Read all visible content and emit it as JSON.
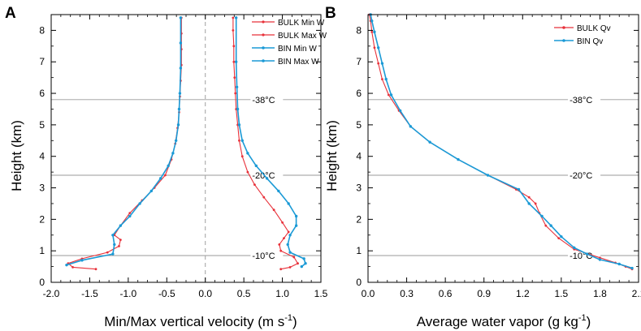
{
  "panels": [
    {
      "id": "A",
      "panel_label": "A",
      "xlabel_main": "Min/Max vertical velocity (m s",
      "xlabel_sup": "-1",
      "xlabel_end": ")",
      "ylabel": "Height (km)"
    },
    {
      "id": "B",
      "panel_label": "B",
      "xlabel_main": "Average water vapor (g kg",
      "xlabel_sup": "-1",
      "xlabel_end": ")",
      "ylabel": "Height (km)"
    }
  ],
  "colors": {
    "bulk": "#e8313a",
    "bin": "#1b9ad6",
    "ref_line": "#9a9a9a",
    "zero_line": "#a0a0a0"
  },
  "chart_data": [
    {
      "type": "line",
      "title": "",
      "xlabel": "Min/Max vertical velocity (m s-1)",
      "ylabel": "Height (km)",
      "xlim": [
        -2.0,
        1.5
      ],
      "ylim": [
        0,
        8.5
      ],
      "xticks": [
        -2.0,
        -1.5,
        -1.0,
        -0.5,
        0.0,
        0.5,
        1.0,
        1.5
      ],
      "xtick_labels": [
        "-2.0",
        "-1.5",
        "-1.0",
        "-0.5",
        "0.0",
        "0.5",
        "1.0",
        "1.5"
      ],
      "yticks": [
        0,
        1,
        2,
        3,
        4,
        5,
        6,
        7,
        8
      ],
      "ytick_labels": [
        "0",
        "1",
        "2",
        "3",
        "4",
        "5",
        "6",
        "7",
        "8"
      ],
      "legend": "top-right",
      "reference_lines": [
        {
          "y": 5.8,
          "label": "-38°C"
        },
        {
          "y": 3.4,
          "label": "-20°C"
        },
        {
          "y": 0.85,
          "label": "-10°C"
        }
      ],
      "zero_line_x": 0.0,
      "series": [
        {
          "name": "BULK Min W",
          "color_key": "bulk",
          "x": [
            -1.42,
            -1.72,
            -1.78,
            -1.6,
            -1.27,
            -1.12,
            -1.1,
            -1.18,
            -1.1,
            -0.98,
            -0.82,
            -0.66,
            -0.52,
            -0.44,
            -0.39,
            -0.36,
            -0.34,
            -0.33,
            -0.32,
            -0.31,
            -0.31,
            -0.31,
            -0.31
          ],
          "y": [
            0.42,
            0.48,
            0.6,
            0.75,
            0.95,
            1.15,
            1.35,
            1.5,
            1.8,
            2.2,
            2.6,
            3.0,
            3.4,
            3.9,
            4.4,
            4.9,
            5.4,
            5.9,
            6.4,
            6.9,
            7.4,
            7.9,
            8.4
          ]
        },
        {
          "name": "BULK Max W",
          "color_key": "bulk",
          "x": [
            0.98,
            1.1,
            1.2,
            1.15,
            0.98,
            0.96,
            1.02,
            1.08,
            1.0,
            0.89,
            0.76,
            0.64,
            0.55,
            0.48,
            0.44,
            0.42,
            0.4,
            0.39,
            0.38,
            0.37,
            0.37,
            0.36,
            0.36
          ],
          "y": [
            0.42,
            0.48,
            0.6,
            0.8,
            1.0,
            1.2,
            1.4,
            1.6,
            1.9,
            2.3,
            2.7,
            3.1,
            3.5,
            4.0,
            4.5,
            5.0,
            5.5,
            6.0,
            6.5,
            7.0,
            7.5,
            8.0,
            8.4
          ]
        },
        {
          "name": "BIN Min W",
          "color_key": "bin",
          "x": [
            -1.8,
            -1.6,
            -1.2,
            -1.18,
            -1.2,
            -1.1,
            -0.98,
            -0.85,
            -0.7,
            -0.58,
            -0.48,
            -0.42,
            -0.38,
            -0.35,
            -0.34,
            -0.33,
            -0.32,
            -0.32,
            -0.32
          ],
          "y": [
            0.55,
            0.7,
            0.9,
            1.2,
            1.5,
            1.8,
            2.1,
            2.5,
            2.9,
            3.3,
            3.7,
            4.1,
            4.5,
            5.0,
            5.5,
            6.0,
            6.8,
            7.6,
            8.4
          ]
        },
        {
          "name": "BIN Max W",
          "color_key": "bin",
          "x": [
            1.25,
            1.3,
            1.28,
            1.1,
            1.07,
            1.1,
            1.18,
            1.18,
            1.08,
            0.95,
            0.8,
            0.66,
            0.55,
            0.48,
            0.44,
            0.42,
            0.41,
            0.4,
            0.4
          ],
          "y": [
            0.5,
            0.6,
            0.75,
            0.95,
            1.2,
            1.5,
            1.8,
            2.1,
            2.5,
            2.9,
            3.3,
            3.7,
            4.1,
            4.5,
            5.0,
            5.5,
            6.2,
            7.0,
            8.4
          ]
        }
      ]
    },
    {
      "type": "line",
      "title": "",
      "xlabel": "Average water vapor (g kg-1)",
      "ylabel": "Height (km)",
      "xlim": [
        0.0,
        2.1
      ],
      "ylim": [
        0,
        8.5
      ],
      "xticks": [
        0.0,
        0.3,
        0.6,
        0.9,
        1.2,
        1.5,
        1.8,
        2.1
      ],
      "xtick_labels": [
        "0.0",
        "0.3",
        "0.6",
        "0.9",
        "1.2",
        "1.5",
        "1.8",
        "2.1"
      ],
      "yticks": [
        0,
        1,
        2,
        3,
        4,
        5,
        6,
        7,
        8
      ],
      "ytick_labels": [
        "0",
        "1",
        "2",
        "3",
        "4",
        "5",
        "6",
        "7",
        "8"
      ],
      "legend": "top-right",
      "reference_lines": [
        {
          "y": 5.8,
          "label": "-38°C"
        },
        {
          "y": 3.4,
          "label": "-20°C"
        },
        {
          "y": 0.85,
          "label": "-10°C"
        }
      ],
      "series": [
        {
          "name": "BULK Qv",
          "color_key": "bulk",
          "x": [
            2.05,
            2.0,
            1.92,
            1.8,
            1.6,
            1.48,
            1.38,
            1.33,
            1.3,
            1.25,
            1.15,
            0.93,
            0.7,
            0.48,
            0.33,
            0.24,
            0.16,
            0.11,
            0.08,
            0.05,
            0.03,
            0.02,
            0.01
          ],
          "y": [
            0.42,
            0.5,
            0.62,
            0.78,
            1.05,
            1.4,
            1.8,
            2.2,
            2.5,
            2.7,
            2.95,
            3.4,
            3.9,
            4.45,
            4.95,
            5.45,
            5.95,
            6.45,
            6.95,
            7.45,
            7.95,
            8.3,
            8.5
          ]
        },
        {
          "name": "BIN Qv",
          "color_key": "bin",
          "x": [
            2.05,
            1.95,
            1.8,
            1.7,
            1.6,
            1.5,
            1.42,
            1.35,
            1.25,
            1.17,
            0.93,
            0.7,
            0.48,
            0.33,
            0.25,
            0.18,
            0.14,
            0.11,
            0.08,
            0.05,
            0.03,
            0.02
          ],
          "y": [
            0.45,
            0.58,
            0.72,
            0.9,
            1.1,
            1.45,
            1.8,
            2.1,
            2.5,
            2.95,
            3.4,
            3.9,
            4.45,
            4.95,
            5.45,
            5.95,
            6.45,
            6.95,
            7.45,
            7.95,
            8.3,
            8.5
          ]
        }
      ]
    }
  ]
}
